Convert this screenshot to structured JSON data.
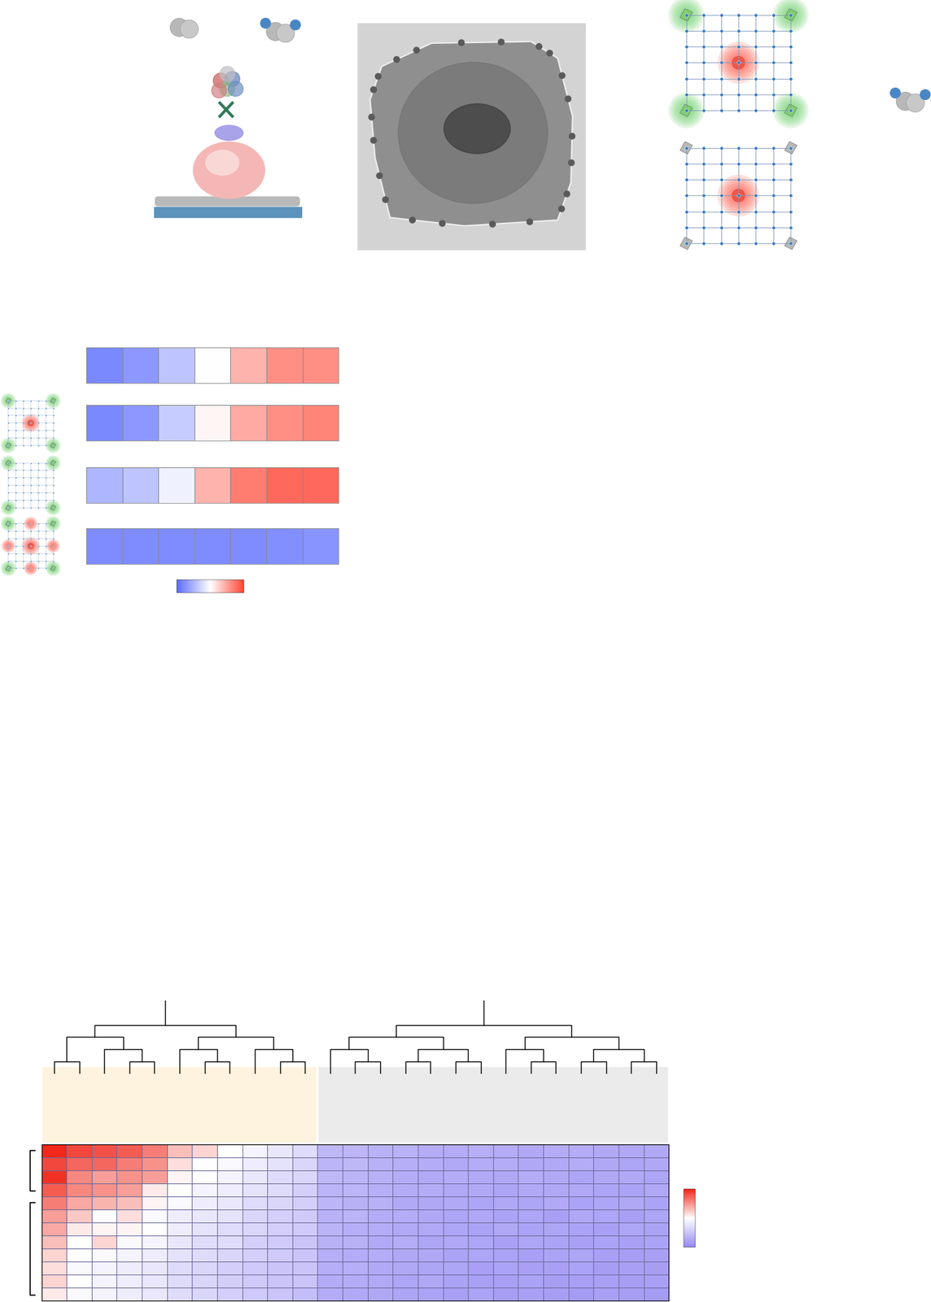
{
  "chart_data": [
    {
      "type": "heatmap",
      "tick_labels": false,
      "colormap": [
        "#5b6cff",
        "#ffffff",
        "#ff4433"
      ],
      "colorbar_range": [
        -1,
        1
      ],
      "cells": [
        [
          -0.8,
          -0.7,
          -0.4,
          0.0,
          0.4,
          0.6,
          0.6
        ],
        [
          -0.8,
          -0.7,
          -0.35,
          0.05,
          0.45,
          0.6,
          0.65
        ],
        [
          -0.5,
          -0.4,
          -0.1,
          0.4,
          0.7,
          0.8,
          0.8
        ],
        [
          -0.78,
          -0.78,
          -0.78,
          -0.78,
          -0.78,
          -0.76,
          -0.72
        ]
      ]
    },
    {
      "type": "heatmap",
      "tick_labels": false,
      "colormap": [
        "#9489f2",
        "#ffffff",
        "#f0271a"
      ],
      "colorbar_range": [
        -1,
        1
      ],
      "column_clusters": [
        {
          "columns": 11,
          "color": "#fdf3df"
        },
        {
          "columns": 14,
          "color": "#ebebeb"
        }
      ],
      "row_groups": [
        4,
        8
      ],
      "cells": [
        [
          1.0,
          0.85,
          0.8,
          0.75,
          0.6,
          0.3,
          0.2,
          0.0,
          -0.1,
          -0.2,
          -0.3,
          -0.6,
          -0.62,
          -0.65,
          -0.65,
          -0.7,
          -0.7,
          -0.68,
          -0.7,
          -0.72,
          -0.7,
          -0.7,
          -0.72,
          -0.74,
          -0.72
        ],
        [
          0.85,
          0.7,
          0.7,
          0.6,
          0.5,
          0.15,
          0.0,
          -0.05,
          -0.15,
          -0.25,
          -0.35,
          -0.62,
          -0.6,
          -0.66,
          -0.68,
          -0.7,
          -0.72,
          -0.7,
          -0.7,
          -0.74,
          -0.72,
          -0.7,
          -0.74,
          -0.76,
          -0.74
        ],
        [
          0.95,
          0.55,
          0.45,
          0.5,
          0.45,
          0.05,
          0.0,
          -0.1,
          -0.2,
          -0.3,
          -0.35,
          -0.6,
          -0.64,
          -0.66,
          -0.7,
          -0.72,
          -0.7,
          -0.72,
          -0.74,
          -0.7,
          -0.72,
          -0.76,
          -0.74,
          -0.72,
          -0.76
        ],
        [
          0.75,
          0.55,
          0.5,
          0.45,
          0.1,
          0.0,
          -0.1,
          -0.15,
          -0.25,
          -0.3,
          -0.4,
          -0.64,
          -0.62,
          -0.68,
          -0.7,
          -0.7,
          -0.74,
          -0.72,
          -0.76,
          -0.72,
          -0.74,
          -0.74,
          -0.76,
          -0.78,
          -0.74
        ],
        [
          0.6,
          0.4,
          0.35,
          0.3,
          0.05,
          -0.05,
          -0.15,
          -0.2,
          -0.3,
          -0.35,
          -0.4,
          -0.62,
          -0.66,
          -0.66,
          -0.72,
          -0.74,
          -0.72,
          -0.76,
          -0.74,
          -0.76,
          -0.72,
          -0.78,
          -0.76,
          -0.74,
          -0.78
        ],
        [
          0.45,
          0.25,
          0.0,
          0.15,
          -0.05,
          -0.15,
          -0.2,
          -0.25,
          -0.35,
          -0.4,
          -0.45,
          -0.66,
          -0.64,
          -0.7,
          -0.7,
          -0.74,
          -0.76,
          -0.74,
          -0.78,
          -0.76,
          -0.8,
          -0.74,
          -0.76,
          -0.8,
          -0.76
        ],
        [
          0.4,
          0.1,
          0.05,
          0.05,
          0.0,
          -0.15,
          -0.25,
          -0.3,
          -0.35,
          -0.4,
          -0.45,
          -0.64,
          -0.68,
          -0.7,
          -0.72,
          -0.72,
          -0.76,
          -0.78,
          -0.74,
          -0.78,
          -0.76,
          -0.78,
          -0.8,
          -0.76,
          -0.78
        ],
        [
          0.3,
          0.0,
          0.2,
          -0.05,
          -0.1,
          -0.2,
          -0.3,
          -0.3,
          -0.4,
          -0.45,
          -0.5,
          -0.66,
          -0.66,
          -0.72,
          -0.7,
          -0.76,
          -0.74,
          -0.76,
          -0.8,
          -0.76,
          -0.78,
          -0.8,
          -0.78,
          -0.8,
          -0.78
        ],
        [
          0.2,
          0.0,
          -0.05,
          -0.1,
          -0.15,
          -0.25,
          -0.3,
          -0.35,
          -0.4,
          -0.45,
          -0.5,
          -0.68,
          -0.7,
          -0.7,
          -0.74,
          -0.74,
          -0.78,
          -0.76,
          -0.78,
          -0.8,
          -0.78,
          -0.76,
          -0.8,
          -0.82,
          -0.8
        ],
        [
          0.15,
          -0.05,
          -0.1,
          -0.15,
          -0.2,
          -0.3,
          -0.35,
          -0.4,
          -0.45,
          -0.5,
          -0.5,
          -0.68,
          -0.68,
          -0.72,
          -0.74,
          -0.76,
          -0.76,
          -0.8,
          -0.78,
          -0.8,
          -0.8,
          -0.78,
          -0.82,
          -0.8,
          -0.82
        ],
        [
          0.2,
          0.0,
          -0.1,
          -0.15,
          -0.2,
          -0.3,
          -0.35,
          -0.4,
          -0.45,
          -0.5,
          -0.5,
          -0.7,
          -0.7,
          -0.72,
          -0.76,
          -0.74,
          -0.78,
          -0.8,
          -0.8,
          -0.78,
          -0.82,
          -0.8,
          -0.8,
          -0.82,
          -0.8
        ],
        [
          0.1,
          -0.05,
          -0.1,
          -0.15,
          -0.2,
          -0.3,
          -0.35,
          -0.4,
          -0.45,
          -0.5,
          -0.55,
          -0.7,
          -0.72,
          -0.74,
          -0.76,
          -0.78,
          -0.8,
          -0.78,
          -0.82,
          -0.8,
          -0.82,
          -0.84,
          -0.8,
          -0.82,
          -0.84
        ]
      ]
    }
  ]
}
